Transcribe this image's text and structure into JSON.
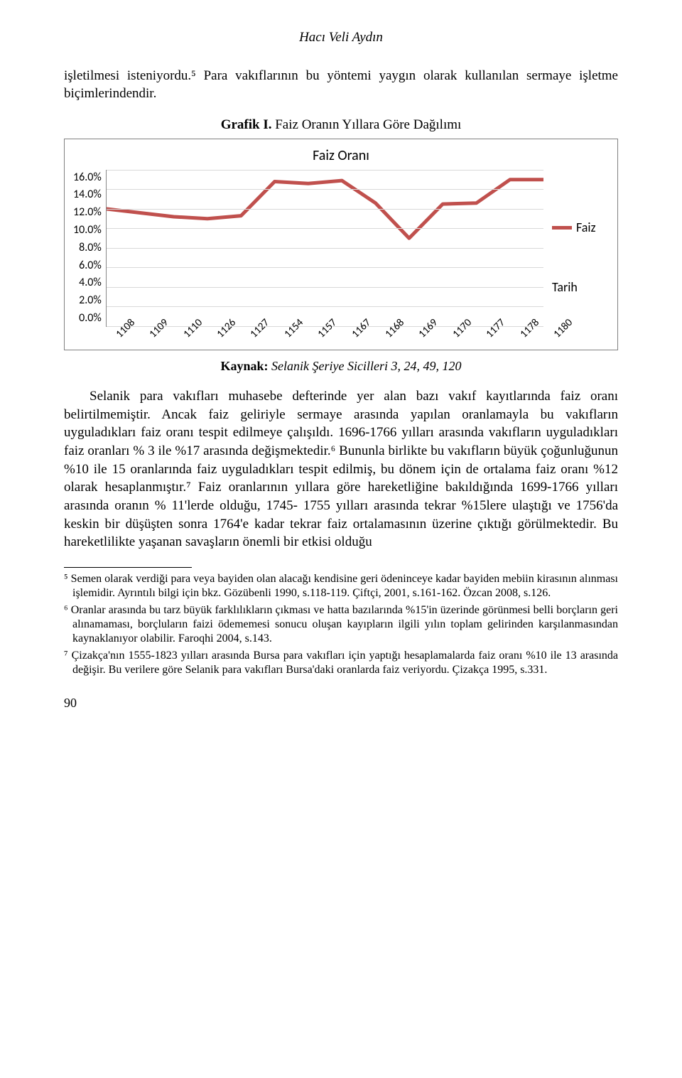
{
  "author": "Hacı Veli Aydın",
  "intro_para": "işletilmesi isteniyordu.⁵ Para vakıflarının bu yöntemi yaygın olarak kullanılan sermaye işletme biçimlerindendir.",
  "chart_heading_bold": "Grafik I.",
  "chart_heading_rest": " Faiz Oranın Yıllara Göre Dağılımı",
  "chart": {
    "type": "line",
    "inner_title": "Faiz Oranı",
    "x_labels": [
      "1108",
      "1109",
      "1110",
      "1126",
      "1127",
      "1154",
      "1157",
      "1167",
      "1168",
      "1169",
      "1170",
      "1177",
      "1178",
      "1180"
    ],
    "y_ticks": [
      "16.0%",
      "14.0%",
      "12.0%",
      "10.0%",
      "8.0%",
      "6.0%",
      "4.0%",
      "2.0%",
      "0.0%"
    ],
    "ylim": [
      0,
      16
    ],
    "values": [
      12.0,
      11.6,
      11.2,
      11.0,
      11.3,
      14.8,
      14.6,
      14.9,
      12.6,
      9.0,
      12.5,
      12.6,
      15.0,
      15.0
    ],
    "line_color": "#c0504d",
    "line_width": 5,
    "grid_color": "#d9d9d9",
    "plot_bg": "#ffffff",
    "tick_font_family": "Calibri, Arial, sans-serif",
    "tick_fontsize": 16,
    "legend_series": "Faiz",
    "legend_axis": "Tarih"
  },
  "chart_source_bold": "Kaynak:",
  "chart_source_rest": " Selanik Şeriye Sicilleri 3, 24, 49, 120",
  "body_para": "Selanik para vakıfları muhasebe defterinde yer alan bazı vakıf kayıtlarında faiz oranı belirtilmemiştir. Ancak faiz geliriyle sermaye arasında yapılan oranlamayla bu vakıfların uyguladıkları faiz oranı tespit edilmeye çalışıldı. 1696-1766 yılları arasında vakıfların uyguladıkları faiz oranları % 3 ile %17 arasında değişmektedir.⁶ Bununla birlikte bu vakıfların büyük çoğunluğunun %10 ile 15 oranlarında faiz uyguladıkları tespit edilmiş, bu dönem için de ortalama faiz oranı %12 olarak hesaplanmıştır.⁷ Faiz oranlarının yıllara göre hareketliğine bakıldığında 1699-1766 yılları arasında oranın % 11'lerde olduğu, 1745- 1755 yılları arasında tekrar %15lere ulaştığı ve 1756'da keskin bir düşüşten sonra 1764'e kadar tekrar faiz ortalamasının üzerine çıktığı görülmektedir. Bu hareketlilikte yaşanan savaşların önemli bir etkisi olduğu",
  "footnote5": "⁵ Semen olarak verdiği para veya bayiden olan alacağı kendisine geri ödeninceye kadar bayiden mebiin kirasının alınması işlemidir. Ayrıntılı bilgi için bkz. Gözübenli 1990, s.118-119. Çiftçi, 2001, s.161-162. Özcan 2008, s.126.",
  "footnote6": "⁶ Oranlar arasında bu tarz büyük farklılıkların çıkması ve hatta bazılarında %15'in üzerinde görünmesi belli borçların geri alınamaması, borçluların faizi ödememesi sonucu oluşan kayıpların ilgili yılın toplam gelirinden karşılanmasından kaynaklanıyor olabilir. Faroqhi 2004, s.143.",
  "footnote7": "⁷ Çizakça'nın 1555-1823 yılları arasında Bursa para vakıfları için yaptığı hesaplamalarda faiz oranı %10 ile 13 arasında değişir. Bu verilere göre Selanik para vakıfları Bursa'daki oranlarda faiz veriyordu. Çizakça 1995, s.331.",
  "page_number": "90"
}
